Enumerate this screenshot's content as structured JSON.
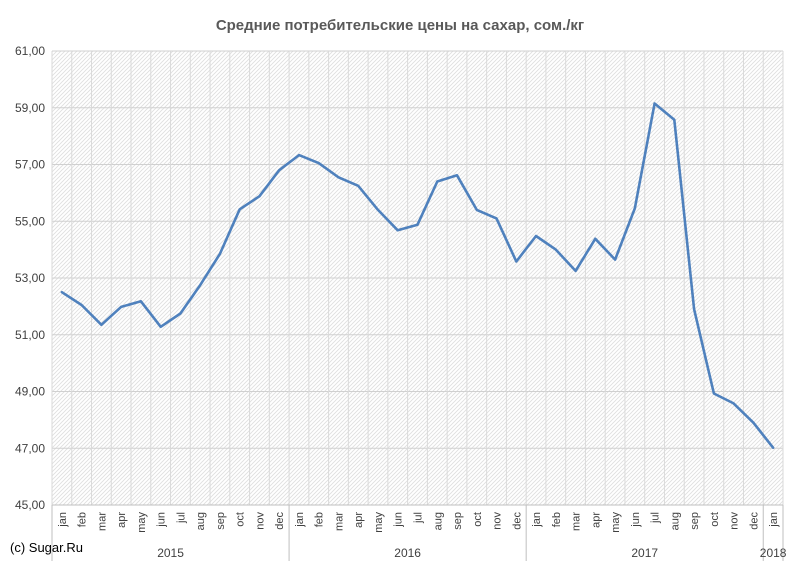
{
  "chart_data": {
    "type": "line",
    "title": "Средние потребительские цены на сахар, сом./кг",
    "credit": "(c) Sugar.Ru",
    "ylim": [
      45,
      61
    ],
    "yticks": [
      "45,00",
      "47,00",
      "49,00",
      "51,00",
      "53,00",
      "55,00",
      "57,00",
      "59,00",
      "61,00"
    ],
    "grid": true,
    "categories": [
      "jan",
      "feb",
      "mar",
      "apr",
      "may",
      "jun",
      "jul",
      "aug",
      "sep",
      "oct",
      "nov",
      "dec",
      "jan",
      "feb",
      "mar",
      "apr",
      "may",
      "jun",
      "jul",
      "aug",
      "sep",
      "oct",
      "nov",
      "dec",
      "jan",
      "feb",
      "mar",
      "apr",
      "may",
      "jun",
      "jul",
      "aug",
      "sep",
      "oct",
      "nov",
      "dec",
      "jan"
    ],
    "years": [
      {
        "label": "2015",
        "start": 0,
        "count": 12
      },
      {
        "label": "2016",
        "start": 12,
        "count": 12
      },
      {
        "label": "2017",
        "start": 24,
        "count": 12
      },
      {
        "label": "2018",
        "start": 36,
        "count": 1
      }
    ],
    "series": [
      {
        "color": "#4F81BD",
        "values": [
          52.5,
          52.05,
          51.35,
          51.98,
          52.18,
          51.28,
          51.75,
          52.75,
          53.85,
          55.42,
          55.88,
          56.8,
          57.33,
          57.05,
          56.55,
          56.25,
          55.4,
          54.68,
          54.88,
          56.4,
          56.62,
          55.4,
          55.1,
          53.58,
          54.48,
          54.0,
          53.25,
          54.38,
          53.65,
          55.45,
          59.15,
          58.58,
          51.9,
          48.93,
          48.58,
          47.9,
          47.02
        ]
      }
    ]
  }
}
